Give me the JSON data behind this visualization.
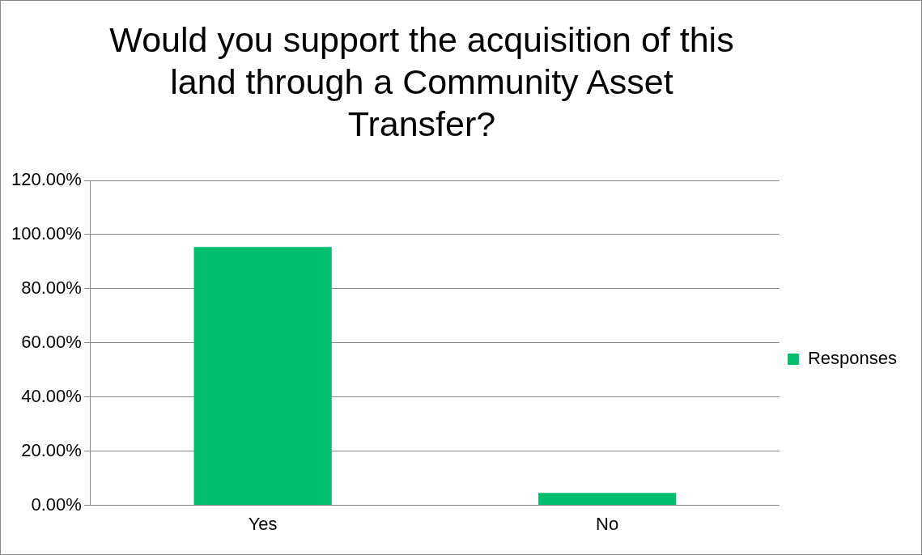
{
  "chart_data": {
    "type": "bar",
    "title": "Would you support the acquisition of this land through a Community Asset Transfer?",
    "categories": [
      "Yes",
      "No"
    ],
    "series": [
      {
        "name": "Responses",
        "color": "#00bf6f",
        "values": [
          95.4,
          4.6
        ]
      }
    ],
    "ylim": [
      0,
      120
    ],
    "yticks": [
      {
        "value": 0,
        "label": "0.00%"
      },
      {
        "value": 20,
        "label": "20.00%"
      },
      {
        "value": 40,
        "label": "40.00%"
      },
      {
        "value": 60,
        "label": "60.00%"
      },
      {
        "value": 80,
        "label": "80.00%"
      },
      {
        "value": 100,
        "label": "100.00%"
      },
      {
        "value": 120,
        "label": "120.00%"
      }
    ],
    "grid": "y",
    "legend": "right"
  }
}
